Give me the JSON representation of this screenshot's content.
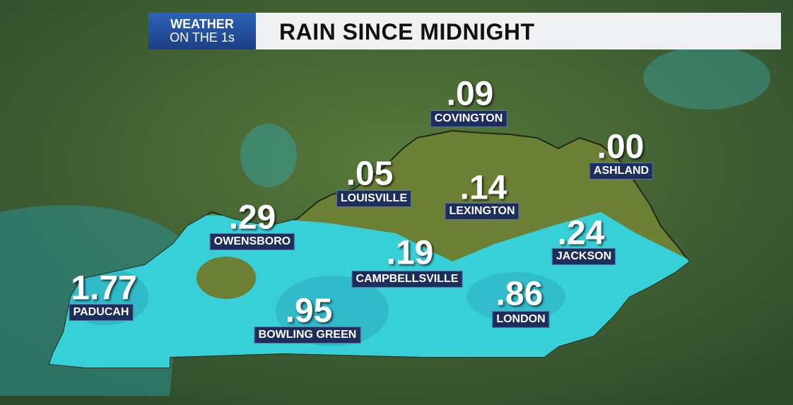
{
  "header": {
    "badge_line1": "WEATHER",
    "badge_line2": "ON THE 1s",
    "title": "RAIN SINCE MIDNIGHT"
  },
  "cities": [
    {
      "amount": ".09",
      "name": "COVINGTON"
    },
    {
      "amount": ".00",
      "name": "ASHLAND"
    },
    {
      "amount": ".05",
      "name": "LOUISVILLE"
    },
    {
      "amount": ".14",
      "name": "LEXINGTON"
    },
    {
      "amount": ".29",
      "name": "OWENSBORO"
    },
    {
      "amount": ".24",
      "name": "JACKSON"
    },
    {
      "amount": ".19",
      "name": "CAMPBELLSVILLE"
    },
    {
      "amount": "1.77",
      "name": "PADUCAH"
    },
    {
      "amount": ".86",
      "name": "LONDON"
    },
    {
      "amount": ".95",
      "name": "BOWLING GREEN"
    }
  ]
}
